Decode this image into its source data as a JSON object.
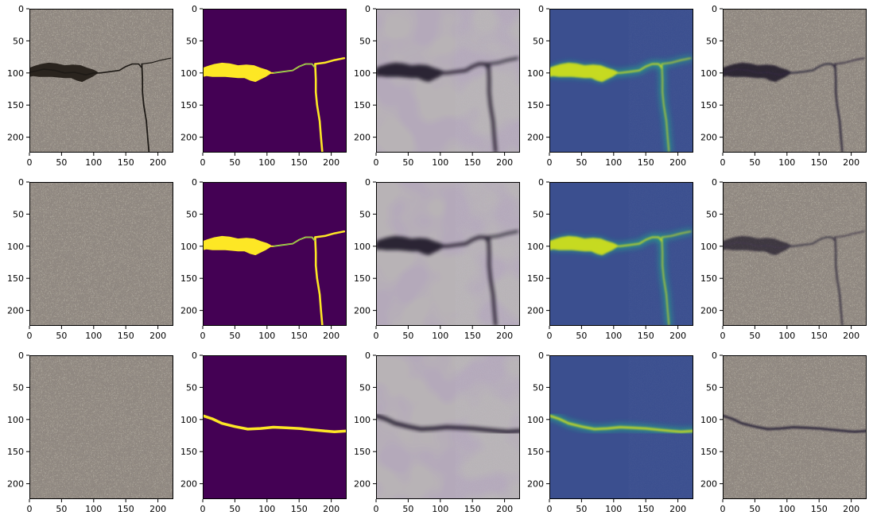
{
  "figure": {
    "rows": 3,
    "cols": 5,
    "axis": {
      "x_ticks": [
        "0",
        "50",
        "100",
        "150",
        "200"
      ],
      "y_ticks": [
        "0",
        "50",
        "100",
        "150",
        "200"
      ],
      "range": [
        0,
        224
      ]
    },
    "panel_types": [
      "input-photo",
      "ground-truth-mask",
      "reconstruction",
      "heatmap",
      "overlay-photo"
    ],
    "palette": {
      "concrete": "#8f877d",
      "concrete_dark": "#4e4840",
      "mask_bg": "#440154",
      "mask_fg": "#fde725",
      "mask_edge": "#35b779",
      "heat_bg": "#3b4f8f",
      "heat_mid": "#21a08a",
      "heat_hi": "#d8e219",
      "recon_bg": "#b8b3b6",
      "recon_dark": "#1c1428"
    },
    "cracks": [
      {
        "row": 0,
        "wide_blob": true,
        "main": [
          [
            0,
            99
          ],
          [
            10,
            97
          ],
          [
            22,
            94
          ],
          [
            40,
            96
          ],
          [
            55,
            100
          ],
          [
            70,
            99
          ],
          [
            88,
            103
          ],
          [
            100,
            100
          ],
          [
            110,
            100
          ],
          [
            125,
            98
          ],
          [
            140,
            96
          ],
          [
            150,
            90
          ],
          [
            160,
            86
          ],
          [
            170,
            86
          ],
          [
            175,
            92
          ]
        ],
        "branch_right": [
          [
            175,
            86
          ],
          [
            190,
            84
          ],
          [
            205,
            80
          ],
          [
            220,
            77
          ]
        ],
        "vertical": [
          [
            175,
            86
          ],
          [
            176,
            110
          ],
          [
            176,
            130
          ],
          [
            178,
            150
          ],
          [
            182,
            175
          ],
          [
            184,
            200
          ],
          [
            186,
            222
          ]
        ],
        "small_cracks": true
      },
      {
        "row": 1,
        "wide_blob": true,
        "main": [
          [
            0,
            99
          ],
          [
            10,
            97
          ],
          [
            22,
            94
          ],
          [
            40,
            96
          ],
          [
            55,
            100
          ],
          [
            70,
            99
          ],
          [
            88,
            103
          ],
          [
            100,
            100
          ],
          [
            110,
            100
          ],
          [
            125,
            98
          ],
          [
            140,
            96
          ],
          [
            150,
            90
          ],
          [
            160,
            86
          ],
          [
            170,
            86
          ],
          [
            175,
            92
          ]
        ],
        "branch_right": [
          [
            175,
            86
          ],
          [
            190,
            84
          ],
          [
            205,
            80
          ],
          [
            220,
            77
          ]
        ],
        "vertical": [
          [
            175,
            86
          ],
          [
            176,
            110
          ],
          [
            176,
            130
          ],
          [
            178,
            150
          ],
          [
            182,
            175
          ],
          [
            184,
            200
          ],
          [
            186,
            222
          ]
        ],
        "small_cracks": false
      },
      {
        "row": 2,
        "wide_blob": false,
        "main": [
          [
            0,
            94
          ],
          [
            15,
            99
          ],
          [
            30,
            106
          ],
          [
            50,
            111
          ],
          [
            70,
            115
          ],
          [
            90,
            114
          ],
          [
            110,
            112
          ],
          [
            130,
            113
          ],
          [
            150,
            114
          ],
          [
            170,
            116
          ],
          [
            190,
            118
          ],
          [
            205,
            119
          ],
          [
            224,
            118
          ]
        ],
        "branch_right": [],
        "vertical": [],
        "small_cracks": false
      }
    ]
  }
}
